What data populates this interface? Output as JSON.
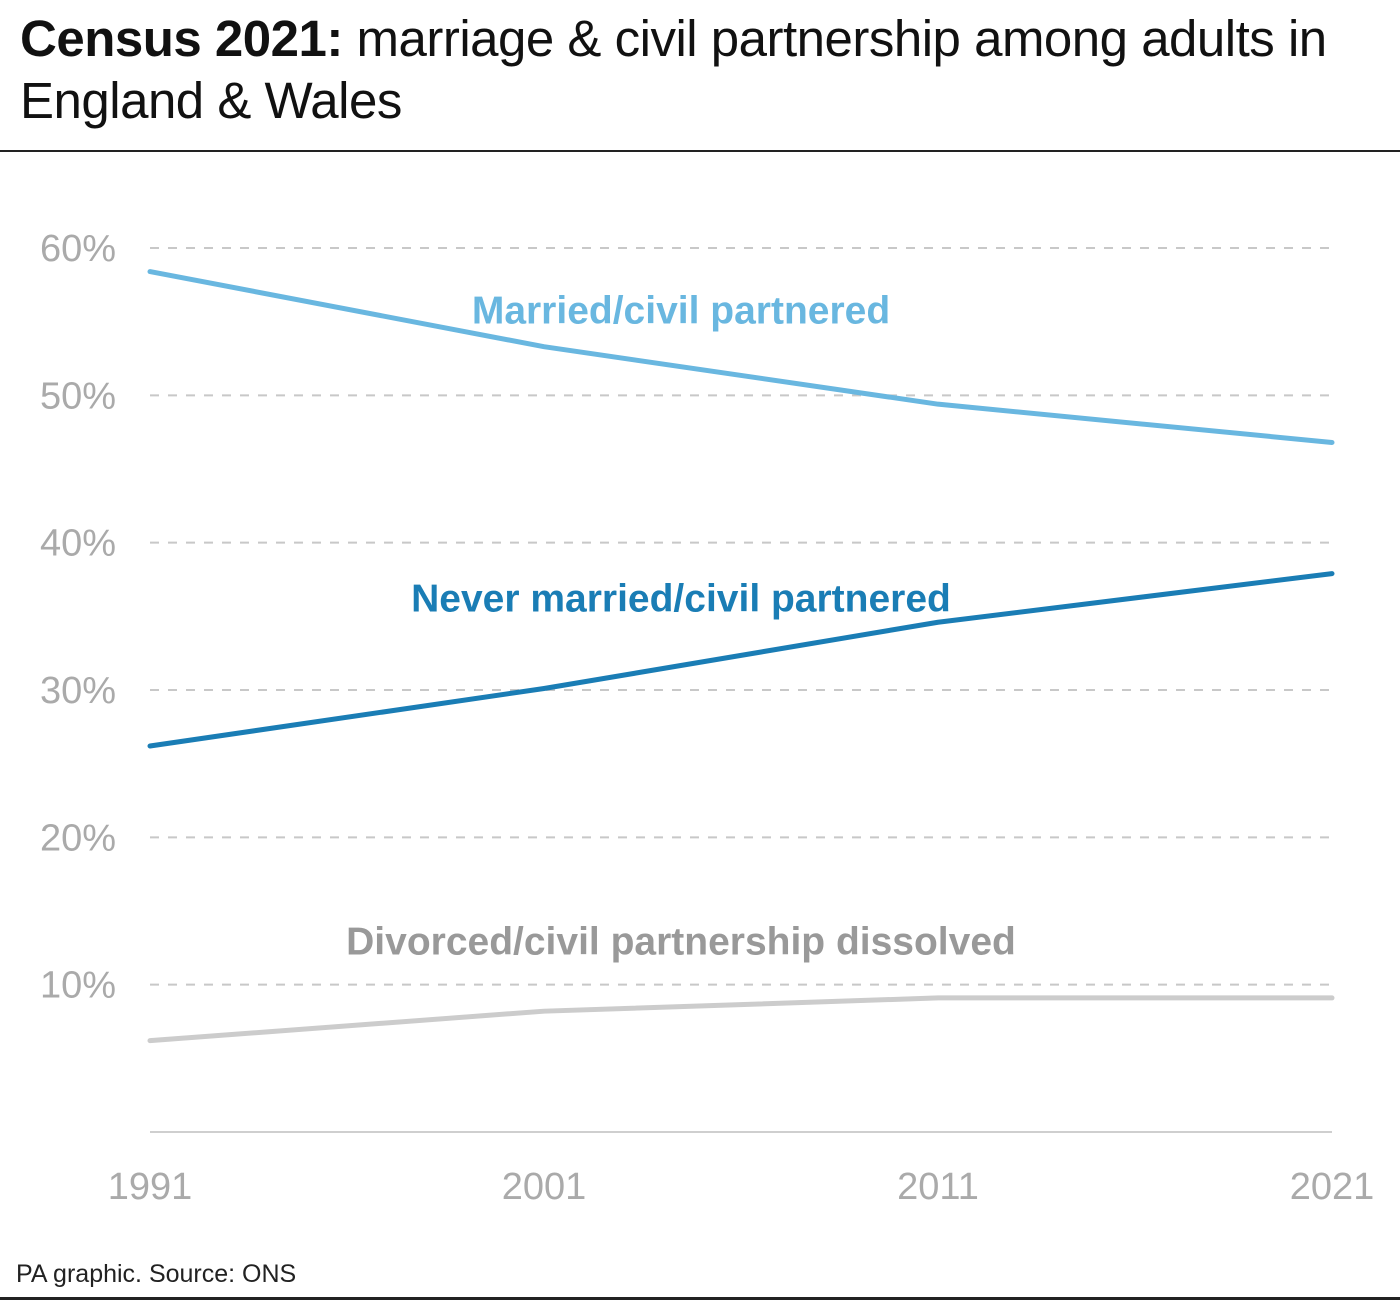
{
  "header": {
    "title_bold": "Census 2021:",
    "title_rest": "marriage & civil partnership among adults in England & Wales"
  },
  "footer": {
    "source": "PA graphic. Source: ONS"
  },
  "chart_data": {
    "type": "line",
    "title": "Census 2021: marriage & civil partnership among adults in England & Wales",
    "x": [
      "1991",
      "2001",
      "2011",
      "2021"
    ],
    "ylim": [
      0,
      60
    ],
    "yticks": [
      10,
      20,
      30,
      40,
      50,
      60
    ],
    "ytick_labels": [
      "10%",
      "20%",
      "30%",
      "40%",
      "50%",
      "60%"
    ],
    "grid": true,
    "series": [
      {
        "name": "Married/civil partnered",
        "color": "#69b7e0",
        "values": [
          58.4,
          53.3,
          49.4,
          46.8
        ]
      },
      {
        "name": "Never married/civil partnered",
        "color": "#1a7db5",
        "values": [
          26.2,
          30.1,
          34.6,
          37.9
        ]
      },
      {
        "name": "Divorced/civil partnership dissolved",
        "color": "#cccccc",
        "label_color": "#999999",
        "values": [
          6.2,
          8.2,
          9.1,
          9.1
        ]
      }
    ]
  }
}
